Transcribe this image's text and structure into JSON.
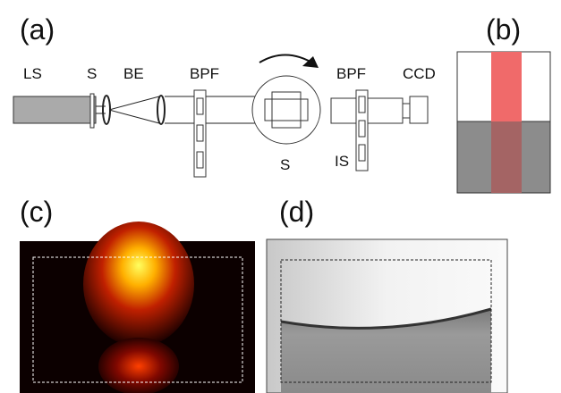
{
  "panel_labels": [
    "(a)",
    "(b)",
    "(c)",
    "(d)"
  ],
  "components": [
    "LS",
    "S",
    "BE",
    "BPF",
    "S",
    "BPF",
    "CCD",
    "IS"
  ]
}
